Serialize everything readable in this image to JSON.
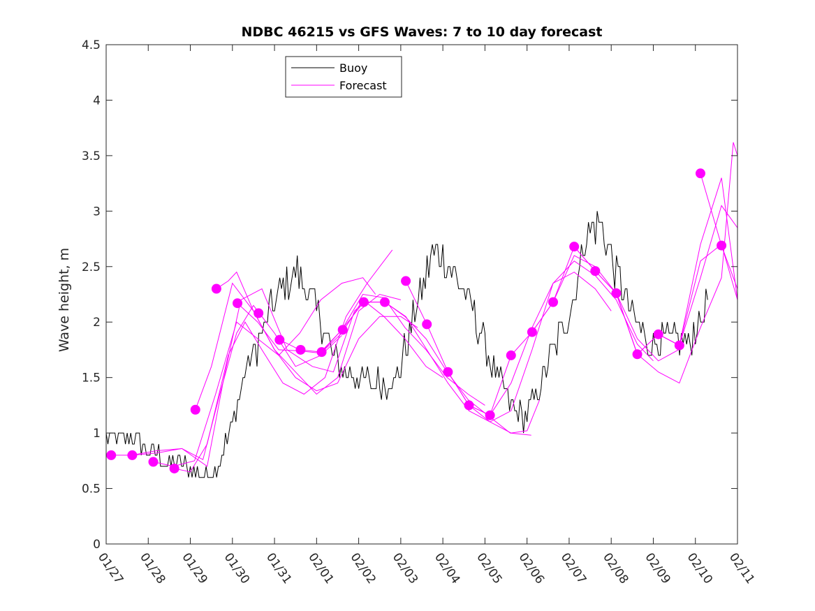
{
  "chart_data": {
    "type": "line",
    "title": "NDBC 46215 vs GFS Waves: 7 to 10 day forecast",
    "xlabel": "",
    "ylabel": "Wave height, m",
    "ylim": [
      0,
      4.5
    ],
    "xlim_days": [
      0,
      15
    ],
    "x_unit": "days since 01/27",
    "yticks": [
      0,
      0.5,
      1,
      1.5,
      2,
      2.5,
      3,
      3.5,
      4,
      4.5
    ],
    "ytick_labels": [
      "0",
      "0.5",
      "1",
      "1.5",
      "2",
      "2.5",
      "3",
      "3.5",
      "4",
      "4.5"
    ],
    "xtick_labels": [
      "01/27",
      "01/28",
      "01/29",
      "01/30",
      "01/31",
      "02/01",
      "02/02",
      "02/03",
      "02/04",
      "02/05",
      "02/06",
      "02/07",
      "02/08",
      "02/09",
      "02/10",
      "02/11"
    ],
    "grid": false,
    "legend": {
      "placement": "top-left-center",
      "entries": [
        {
          "label": "Buoy",
          "color": "#000000"
        },
        {
          "label": "Forecast",
          "color": "#ff00ff"
        }
      ]
    },
    "colors": {
      "buoy": "#000000",
      "forecast": "#ff00ff",
      "axis": "#262626"
    },
    "buoy_envelope": {
      "description": "Noisy hourly buoy observations; approximate center and jitter",
      "x": [
        0,
        0.3,
        0.6,
        0.9,
        1.2,
        1.5,
        1.8,
        2.1,
        2.4,
        2.7,
        3.0,
        3.3,
        3.6,
        3.9,
        4.2,
        4.5,
        4.8,
        5.1,
        5.4,
        5.7,
        6.0,
        6.3,
        6.6,
        6.9,
        7.2,
        7.5,
        7.8,
        8.1,
        8.4,
        8.7,
        9.0,
        9.3,
        9.6,
        9.9,
        10.2,
        10.5,
        10.8,
        11.1,
        11.4,
        11.7,
        12.0,
        12.3,
        12.6,
        12.9,
        13.2,
        13.5,
        13.8,
        14.1,
        14.3
      ],
      "y": [
        0.95,
        0.92,
        0.95,
        0.88,
        0.8,
        0.72,
        0.7,
        0.65,
        0.63,
        0.72,
        1.1,
        1.55,
        1.8,
        2.1,
        2.3,
        2.45,
        2.3,
        2.0,
        1.7,
        1.55,
        1.5,
        1.45,
        1.45,
        1.48,
        1.9,
        2.3,
        2.65,
        2.55,
        2.35,
        2.1,
        1.8,
        1.5,
        1.25,
        1.15,
        1.3,
        1.65,
        1.9,
        2.2,
        2.8,
        2.9,
        2.6,
        2.25,
        2.0,
        1.8,
        1.85,
        1.85,
        1.8,
        2.0,
        2.2
      ],
      "jitter": 0.12
    },
    "forecast_markers": {
      "x": [
        0.12,
        0.62,
        1.12,
        1.62,
        2.12,
        2.62,
        3.12,
        3.62,
        4.12,
        4.62,
        5.12,
        5.62,
        6.12,
        6.62,
        7.12,
        7.62,
        8.12,
        8.62,
        9.12,
        9.62,
        10.12,
        10.62,
        11.12,
        11.62,
        12.12,
        12.62,
        13.12,
        13.62,
        14.12,
        14.62
      ],
      "y": [
        0.8,
        0.8,
        0.74,
        0.68,
        1.21,
        2.3,
        2.17,
        2.08,
        1.84,
        1.75,
        1.73,
        1.93,
        2.18,
        2.18,
        2.37,
        1.98,
        1.55,
        1.25,
        1.16,
        1.7,
        1.91,
        2.18,
        2.68,
        2.46,
        2.26,
        1.71,
        1.89,
        1.79,
        3.34,
        2.69
      ]
    },
    "forecast_runs": [
      {
        "x": [
          0.12,
          0.6,
          1.2,
          1.8,
          2.3,
          2.7,
          3.1,
          3.5,
          4.0,
          4.5,
          5.1,
          5.6
        ],
        "y": [
          0.8,
          0.8,
          0.84,
          0.86,
          0.76,
          1.35,
          1.9,
          2.15,
          1.9,
          1.6,
          1.7,
          1.88
        ]
      },
      {
        "x": [
          0.62,
          1.2,
          1.8,
          2.4,
          2.8,
          3.2,
          3.7,
          4.3,
          4.9,
          5.4,
          5.9,
          6.2
        ],
        "y": [
          0.8,
          0.82,
          0.86,
          0.7,
          1.5,
          2.2,
          2.3,
          1.75,
          1.6,
          1.55,
          2.1,
          2.2
        ]
      },
      {
        "x": [
          1.12,
          1.6,
          2.1,
          2.6,
          3.1,
          3.6,
          4.1,
          4.6,
          5.1,
          5.6,
          6.1,
          6.4
        ],
        "y": [
          0.74,
          0.7,
          0.75,
          1.35,
          2.0,
          1.85,
          1.7,
          1.9,
          2.2,
          2.35,
          2.4,
          2.25
        ]
      },
      {
        "x": [
          1.62,
          2.0,
          2.4,
          2.9,
          3.3,
          3.7,
          4.2,
          4.7,
          5.2,
          5.7,
          6.2,
          6.8
        ],
        "y": [
          0.68,
          0.65,
          0.9,
          1.7,
          2.0,
          1.75,
          1.45,
          1.35,
          1.5,
          2.05,
          2.35,
          2.65
        ]
      },
      {
        "x": [
          2.12,
          2.5,
          3.0,
          3.5,
          4.0,
          4.5,
          5.0,
          5.5,
          6.0,
          6.5,
          7.0
        ],
        "y": [
          1.21,
          1.6,
          2.35,
          2.1,
          1.75,
          1.55,
          1.35,
          1.5,
          2.1,
          2.25,
          2.2
        ]
      },
      {
        "x": [
          2.62,
          2.9,
          3.1,
          3.5,
          4.0,
          4.5,
          5.0,
          5.5,
          6.0,
          6.5,
          7.0,
          7.4
        ],
        "y": [
          2.3,
          2.37,
          2.45,
          2.1,
          1.75,
          1.5,
          1.38,
          1.45,
          1.85,
          2.05,
          2.05,
          1.95
        ]
      },
      {
        "x": [
          3.12,
          3.6,
          4.1,
          4.6,
          5.1,
          5.6,
          6.1,
          6.6,
          7.1,
          7.6,
          8.0
        ],
        "y": [
          2.17,
          2.0,
          1.75,
          1.74,
          1.72,
          1.9,
          2.2,
          2.05,
          1.85,
          1.6,
          1.5
        ]
      },
      {
        "x": [
          4.12,
          4.6,
          5.1,
          5.6,
          6.1,
          6.6,
          7.1,
          7.6,
          8.1,
          8.6,
          9.0
        ],
        "y": [
          1.84,
          1.75,
          1.73,
          1.93,
          2.25,
          2.22,
          1.95,
          1.75,
          1.5,
          1.35,
          1.25
        ]
      },
      {
        "x": [
          5.12,
          5.6,
          6.12,
          6.62,
          7.1,
          7.6,
          8.1,
          8.6,
          9.1,
          9.6,
          10.1
        ],
        "y": [
          1.73,
          1.93,
          2.18,
          2.18,
          2.05,
          1.85,
          1.55,
          1.3,
          1.15,
          1.0,
          0.98
        ]
      },
      {
        "x": [
          6.12,
          6.62,
          7.12,
          7.62,
          8.12,
          8.62,
          9.12,
          9.62,
          10.0,
          10.3
        ],
        "y": [
          2.18,
          2.18,
          2.05,
          1.75,
          1.45,
          1.2,
          1.1,
          1.0,
          1.02,
          1.3
        ]
      },
      {
        "x": [
          7.12,
          7.62,
          8.12,
          8.62,
          9.12,
          9.62,
          10.12,
          10.62,
          11.12,
          11.62,
          12.0
        ],
        "y": [
          2.37,
          1.98,
          1.55,
          1.25,
          1.16,
          1.45,
          1.95,
          2.35,
          2.45,
          2.3,
          2.1
        ]
      },
      {
        "x": [
          8.12,
          8.62,
          9.12,
          9.62,
          10.12,
          10.62,
          11.12,
          11.62,
          12.12,
          12.62,
          13.0
        ],
        "y": [
          1.55,
          1.25,
          1.1,
          1.2,
          1.75,
          2.35,
          2.55,
          2.42,
          2.2,
          1.8,
          1.65
        ]
      },
      {
        "x": [
          8.62,
          9.12,
          9.62,
          10.12,
          10.62,
          11.12,
          11.62,
          12.12,
          12.62,
          13.12,
          13.6
        ],
        "y": [
          1.25,
          1.16,
          1.7,
          1.91,
          2.18,
          2.6,
          2.5,
          2.26,
          1.85,
          1.65,
          1.75
        ]
      },
      {
        "x": [
          10.12,
          10.62,
          11.12,
          11.62,
          12.12,
          12.62,
          13.12,
          13.62,
          14.12,
          14.62,
          15.0
        ],
        "y": [
          1.91,
          2.18,
          2.68,
          2.46,
          2.26,
          1.71,
          1.89,
          1.79,
          2.4,
          3.05,
          2.85
        ]
      },
      {
        "x": [
          11.12,
          11.62,
          12.12,
          12.62,
          13.12,
          13.62,
          14.12,
          14.62,
          15.0
        ],
        "y": [
          2.68,
          2.46,
          2.26,
          1.71,
          1.89,
          1.79,
          2.7,
          3.3,
          2.2
        ]
      },
      {
        "x": [
          12.12,
          12.62,
          13.12,
          13.62,
          14.12,
          14.62,
          14.9,
          15.0
        ],
        "y": [
          2.26,
          1.71,
          1.55,
          1.45,
          1.95,
          2.4,
          3.62,
          3.5
        ]
      },
      {
        "x": [
          13.12,
          13.62,
          14.12,
          14.62,
          15.0
        ],
        "y": [
          1.89,
          1.79,
          2.55,
          2.7,
          2.2
        ]
      },
      {
        "x": [
          14.12,
          14.62,
          15.0
        ],
        "y": [
          3.34,
          2.69,
          2.3
        ]
      }
    ]
  }
}
